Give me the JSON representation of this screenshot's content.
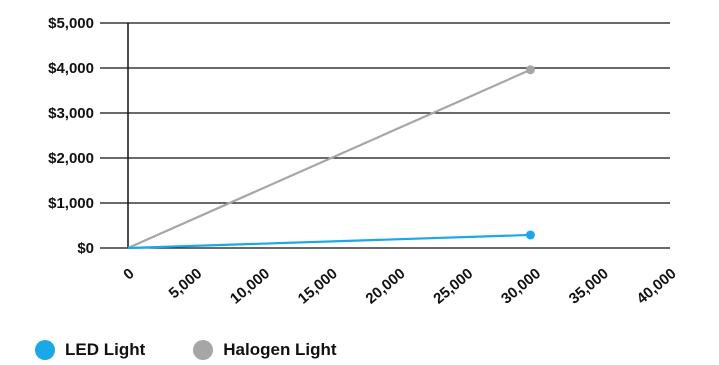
{
  "chart_data": {
    "type": "line",
    "title": "",
    "xlabel": "",
    "ylabel": "",
    "xlim": [
      0,
      40000
    ],
    "ylim": [
      0,
      5000
    ],
    "x_ticks": [
      0,
      5000,
      10000,
      15000,
      20000,
      25000,
      30000,
      35000,
      40000
    ],
    "x_tick_labels": [
      "0",
      "5,000",
      "10,000",
      "15,000",
      "20,000",
      "25,000",
      "30,000",
      "35,000",
      "40,000"
    ],
    "y_ticks": [
      0,
      1000,
      2000,
      3000,
      4000,
      5000
    ],
    "y_tick_labels": [
      "$0",
      "$1,000",
      "$2,000",
      "$3,000",
      "$4,000",
      "$5,000"
    ],
    "grid": "horizontal",
    "legend_position": "bottom-left",
    "series": [
      {
        "name": "LED Light",
        "color": "#1aa9e6",
        "x": [
          0,
          29700
        ],
        "y": [
          0,
          290
        ]
      },
      {
        "name": "Halogen Light",
        "color": "#a6a6a6",
        "x": [
          0,
          29700
        ],
        "y": [
          0,
          3960
        ]
      }
    ]
  },
  "legend": {
    "items": [
      {
        "label": "LED Light",
        "color": "#1aa9e6"
      },
      {
        "label": "Halogen Light",
        "color": "#a6a6a6"
      }
    ]
  }
}
